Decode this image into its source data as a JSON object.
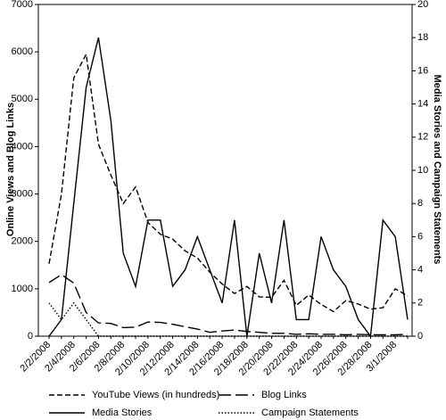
{
  "chart_data": {
    "type": "line",
    "y_label": "Online Views and Blog Links",
    "y2_label": "Media Stories and Campaign Statements",
    "categories": [
      "2/2/2008",
      null,
      "2/4/2008",
      null,
      "2/6/2008",
      null,
      "2/8/2008",
      null,
      "2/10/2008",
      null,
      "2/12/2008",
      null,
      "2/14/2008",
      null,
      "2/16/2008",
      null,
      "2/18/2008",
      null,
      "2/20/2008",
      null,
      "2/22/2008",
      null,
      "2/24/2008",
      null,
      "2/26/2008",
      null,
      "2/28/2008",
      null,
      "3/1/2008",
      null
    ],
    "ylim": [
      0,
      7000
    ],
    "yticks": [
      0,
      1000,
      2000,
      3000,
      4000,
      5000,
      6000,
      7000
    ],
    "y2lim": [
      0,
      20
    ],
    "y2ticks": [
      0,
      2,
      4,
      6,
      8,
      10,
      12,
      14,
      16,
      18,
      20
    ],
    "legend": "bottom",
    "series": [
      {
        "name": "YouTube Views (in hundreds)",
        "color": "#000000",
        "line_style": "dashed",
        "values": [
          1530,
          3000,
          5450,
          5950,
          4050,
          3400,
          2800,
          3150,
          2400,
          2150,
          2050,
          1800,
          1650,
          1350,
          1100,
          900,
          1050,
          830,
          820,
          1180,
          650,
          870,
          670,
          520,
          750,
          680,
          570,
          600,
          1000,
          850
        ]
      },
      {
        "name": "Blog Links",
        "color": "#000000",
        "line_style": "longdash",
        "values": [
          1130,
          1300,
          1120,
          500,
          280,
          270,
          180,
          190,
          300,
          290,
          250,
          200,
          150,
          80,
          110,
          130,
          100,
          80,
          60,
          60,
          40,
          50,
          40,
          40,
          30,
          40,
          30,
          30,
          30,
          40
        ]
      },
      {
        "name": "Media Stories",
        "color": "#000000",
        "line_style": "solid",
        "axis": "y2",
        "values": [
          0,
          1,
          8,
          15,
          18,
          13,
          5,
          3,
          7,
          7,
          3,
          4,
          6,
          4,
          2,
          7,
          0,
          5,
          2,
          7,
          1,
          1,
          6,
          4,
          3,
          1,
          0,
          7,
          6,
          1
        ]
      },
      {
        "name": "Campaign Statements",
        "color": "#000000",
        "line_style": "dotted",
        "axis": "y2",
        "values": [
          2,
          1,
          2,
          1,
          0,
          0,
          0,
          0,
          0,
          0,
          0,
          0,
          0,
          0,
          0,
          0,
          0,
          0,
          0,
          0,
          0,
          0,
          0,
          0,
          0,
          0,
          0,
          0,
          0,
          0
        ]
      }
    ]
  }
}
